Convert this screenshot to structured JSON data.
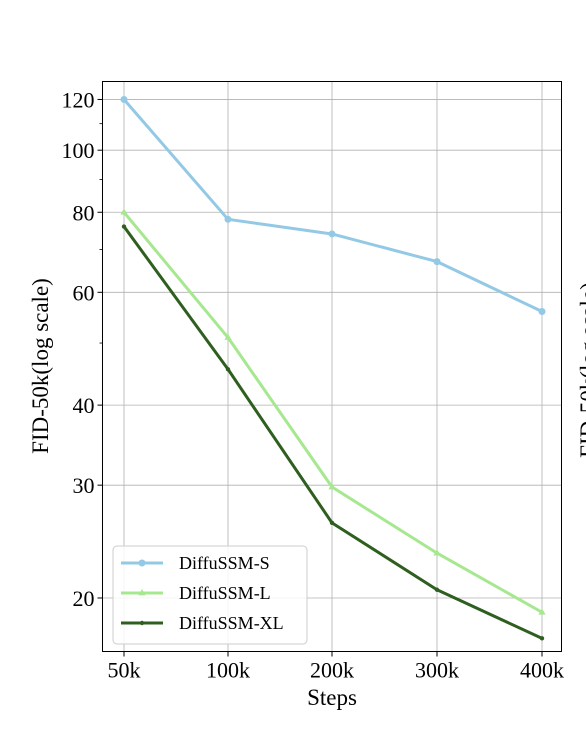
{
  "chart_data": {
    "type": "line",
    "title": "",
    "xlabel": "Steps",
    "ylabel": "FID-50k(log scale)",
    "y_scale": "log",
    "x_categories": [
      "50k",
      "100k",
      "200k",
      "300k",
      "400k"
    ],
    "ylim": [
      16.5,
      128
    ],
    "yticks": [
      20,
      30,
      40,
      60,
      80,
      100,
      120
    ],
    "ytick_labels": [
      "20",
      "30",
      "40",
      "60",
      "80",
      "100",
      "120"
    ],
    "grid": true,
    "legend_position": "lower-left",
    "series": [
      {
        "name": "DiffuSSM-S",
        "color": "#93c9e4",
        "marker": "circle",
        "values": [
          120,
          78,
          74,
          67,
          56
        ]
      },
      {
        "name": "DiffuSSM-L",
        "color": "#a6e88f",
        "marker": "triangle",
        "values": [
          80,
          51,
          29.8,
          23.5,
          19
        ]
      },
      {
        "name": "DiffuSSM-XL",
        "color": "#2e5f1f",
        "marker": "dot",
        "values": [
          76,
          45.5,
          26.2,
          20.6,
          17.3
        ]
      }
    ],
    "right_edge_fragment": "FID-50k(log scale)"
  }
}
